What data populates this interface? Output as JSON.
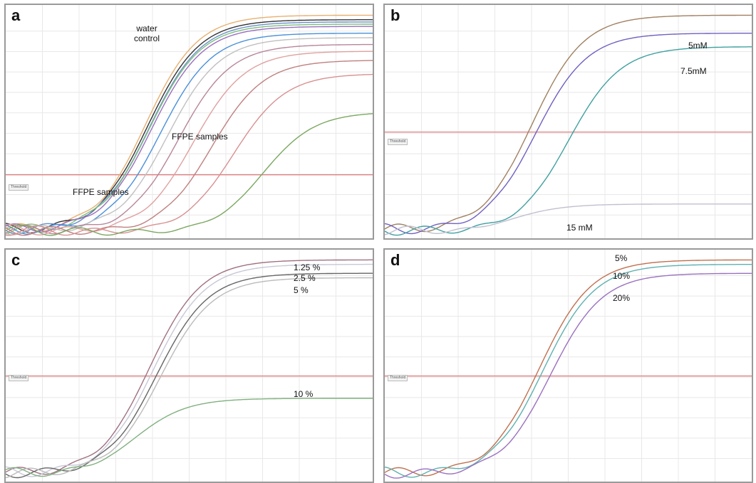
{
  "panels": [
    {
      "id": "a",
      "label": "a",
      "threshold_label": "Threshold",
      "annotations": [
        "water\ncontrol",
        "FFPE samples",
        "FFPE samples"
      ]
    },
    {
      "id": "b",
      "label": "b",
      "threshold_label": "Threshold",
      "annotations": [
        "5mM",
        "7.5mM",
        "15 mM"
      ]
    },
    {
      "id": "c",
      "label": "c",
      "threshold_label": "Threshold",
      "annotations": [
        "1.25 %",
        "2.5 %",
        "5 %",
        "10 %"
      ]
    },
    {
      "id": "d",
      "label": "d",
      "threshold_label": "Threshold",
      "annotations": [
        "5%",
        "10%",
        "20%"
      ]
    }
  ],
  "chart_data": [
    {
      "type": "line",
      "panel": "a",
      "x_range": [
        0,
        1
      ],
      "y_range": [
        0,
        1
      ],
      "threshold": 0.27,
      "grid": true,
      "series": [
        {
          "color": "#e8b070",
          "plateau": 0.98,
          "midpoint": 0.38
        },
        {
          "color": "#333333",
          "plateau": 0.96,
          "midpoint": 0.385
        },
        {
          "color": "#6a8fc9",
          "plateau": 0.95,
          "midpoint": 0.39
        },
        {
          "color": "#7fbf7f",
          "plateau": 0.94,
          "midpoint": 0.39
        },
        {
          "color": "#9b6fbf",
          "plateau": 0.93,
          "midpoint": 0.395
        },
        {
          "color": "#4a90d9",
          "plateau": 0.9,
          "midpoint": 0.42
        },
        {
          "color": "#c0c0c0",
          "plateau": 0.88,
          "midpoint": 0.44
        },
        {
          "color": "#b8869a",
          "plateau": 0.85,
          "midpoint": 0.47
        },
        {
          "color": "#e0a0a0",
          "plateau": 0.82,
          "midpoint": 0.51
        },
        {
          "color": "#c08080",
          "plateau": 0.78,
          "midpoint": 0.56
        },
        {
          "color": "#d89090",
          "plateau": 0.72,
          "midpoint": 0.62
        },
        {
          "color": "#7aa860",
          "plateau": 0.55,
          "midpoint": 0.7
        }
      ]
    },
    {
      "type": "line",
      "panel": "b",
      "x_range": [
        0,
        1
      ],
      "y_range": [
        0,
        1
      ],
      "threshold": 0.46,
      "grid": true,
      "series": [
        {
          "color": "#a08060",
          "plateau": 0.98,
          "midpoint": 0.4
        },
        {
          "color": "#7060c0",
          "plateau": 0.9,
          "midpoint": 0.41
        },
        {
          "color": "#40a0a0",
          "plateau": 0.84,
          "midpoint": 0.5
        },
        {
          "color": "#c0c0d0",
          "plateau": 0.14,
          "midpoint": 0.34
        }
      ]
    },
    {
      "type": "line",
      "panel": "c",
      "x_range": [
        0,
        1
      ],
      "y_range": [
        0,
        1
      ],
      "threshold": 0.46,
      "grid": true,
      "series": [
        {
          "color": "#a07080",
          "plateau": 0.98,
          "midpoint": 0.39
        },
        {
          "color": "#c8c8d8",
          "plateau": 0.96,
          "midpoint": 0.4
        },
        {
          "color": "#666666",
          "plateau": 0.92,
          "midpoint": 0.41
        },
        {
          "color": "#bbbbbb",
          "plateau": 0.9,
          "midpoint": 0.42
        },
        {
          "color": "#80b080",
          "plateau": 0.36,
          "midpoint": 0.35
        }
      ]
    },
    {
      "type": "line",
      "panel": "d",
      "x_range": [
        0,
        1
      ],
      "y_range": [
        0,
        1
      ],
      "threshold": 0.46,
      "grid": true,
      "series": [
        {
          "color": "#c07050",
          "plateau": 0.98,
          "midpoint": 0.42
        },
        {
          "color": "#60b0b0",
          "plateau": 0.96,
          "midpoint": 0.43
        },
        {
          "color": "#9b70c0",
          "plateau": 0.92,
          "midpoint": 0.45
        }
      ]
    }
  ]
}
